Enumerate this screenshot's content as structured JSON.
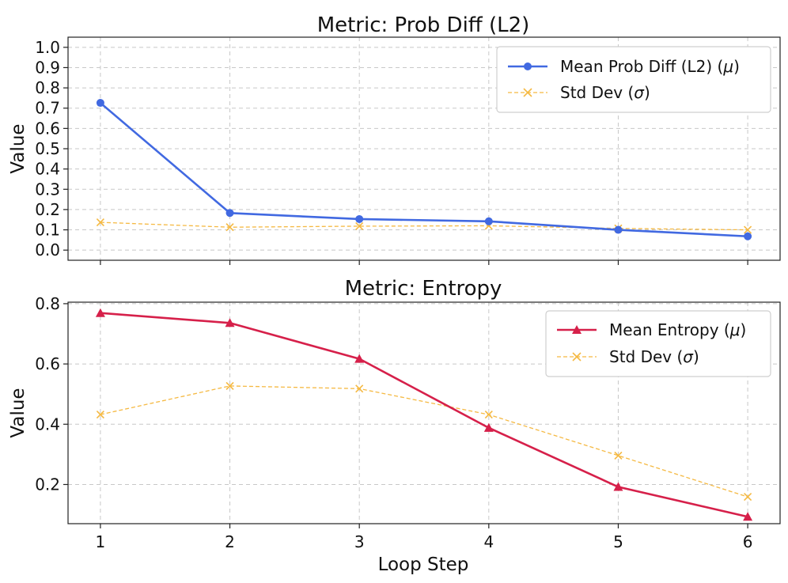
{
  "chart_data": [
    {
      "type": "line",
      "title": "Metric: Prob Diff (L2)",
      "xlabel": "",
      "ylabel": "Value",
      "x": [
        1,
        2,
        3,
        4,
        5,
        6
      ],
      "xlim": [
        0.75,
        6.25
      ],
      "ylim": [
        -0.05,
        1.05
      ],
      "yticks": [
        0.0,
        0.1,
        0.2,
        0.3,
        0.4,
        0.5,
        0.6,
        0.7,
        0.8,
        0.9,
        1.0
      ],
      "ytick_labels": [
        "0.0",
        "0.1",
        "0.2",
        "0.3",
        "0.4",
        "0.5",
        "0.6",
        "0.7",
        "0.8",
        "0.9",
        "1.0"
      ],
      "grid": true,
      "legend_position": "top-right",
      "series": [
        {
          "name": "Mean Prob Diff (L2) (μ)",
          "name_base": "Mean Prob Diff (L2) (",
          "name_sym": "μ",
          "name_end": ")",
          "color": "#4169e1",
          "marker": "circle",
          "style": "solid",
          "values": [
            0.726,
            0.183,
            0.153,
            0.142,
            0.1,
            0.068
          ]
        },
        {
          "name": "Std Dev (σ)",
          "name_base": "Std Dev (",
          "name_sym": "σ",
          "name_end": ")",
          "color": "#f5b942",
          "marker": "x",
          "style": "dashed",
          "values": [
            0.137,
            0.113,
            0.118,
            0.12,
            0.107,
            0.1
          ]
        }
      ]
    },
    {
      "type": "line",
      "title": "Metric: Entropy",
      "xlabel": "Loop Step",
      "ylabel": "Value",
      "x": [
        1,
        2,
        3,
        4,
        5,
        6
      ],
      "xlim": [
        0.75,
        6.25
      ],
      "ylim": [
        0.07,
        0.805
      ],
      "yticks": [
        0.2,
        0.4,
        0.6,
        0.8
      ],
      "ytick_labels": [
        "0.2",
        "0.4",
        "0.6",
        "0.8"
      ],
      "xticks": [
        1,
        2,
        3,
        4,
        5,
        6
      ],
      "xtick_labels": [
        "1",
        "2",
        "3",
        "4",
        "5",
        "6"
      ],
      "grid": true,
      "legend_position": "top-right",
      "series": [
        {
          "name": "Mean Entropy (μ)",
          "name_base": "Mean Entropy (",
          "name_sym": "μ",
          "name_end": ")",
          "color": "#d6204a",
          "marker": "triangle",
          "style": "solid",
          "values": [
            0.769,
            0.736,
            0.617,
            0.388,
            0.192,
            0.093
          ]
        },
        {
          "name": "Std Dev (σ)",
          "name_base": "Std Dev (",
          "name_sym": "σ",
          "name_end": ")",
          "color": "#f5b942",
          "marker": "x",
          "style": "dashed",
          "values": [
            0.432,
            0.527,
            0.518,
            0.432,
            0.296,
            0.159
          ]
        }
      ]
    }
  ]
}
